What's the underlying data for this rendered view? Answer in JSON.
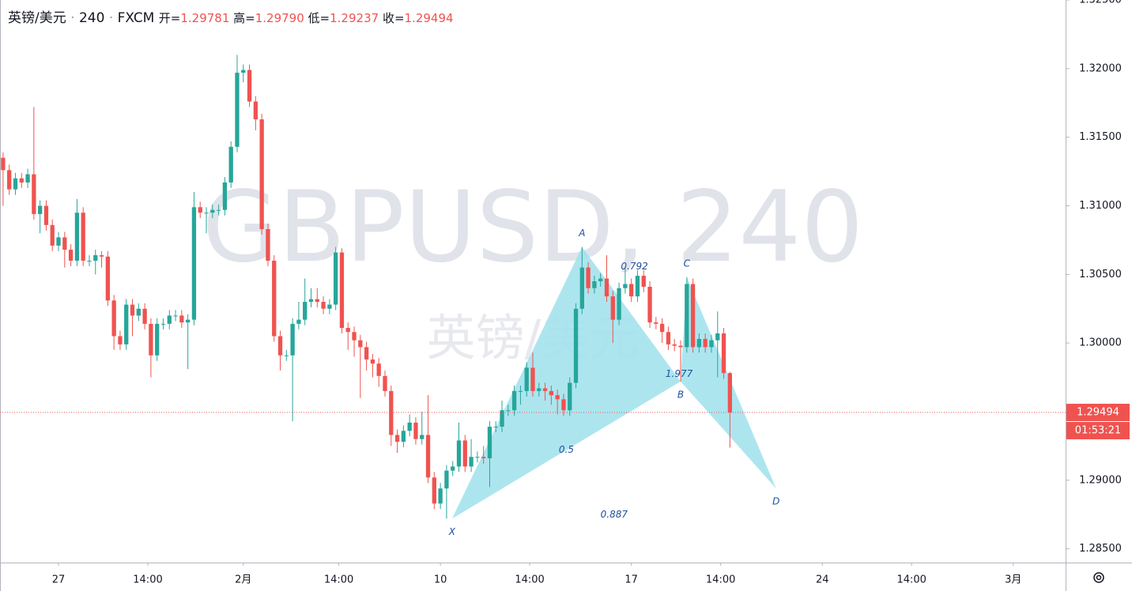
{
  "header": {
    "symbol": "英镑/美元",
    "interval": "240",
    "exchange": "FXCM",
    "ohlc": [
      {
        "label": "开=",
        "value": "1.29781"
      },
      {
        "label": "高=",
        "value": "1.29790"
      },
      {
        "label": "低=",
        "value": "1.29237"
      },
      {
        "label": "收=",
        "value": "1.29494"
      }
    ]
  },
  "chart_data": {
    "type": "candlestick",
    "watermark": "GBPUSD, 240",
    "watermark_sub": "英镑/美元",
    "up_color": "#26a69a",
    "down_color": "#ef5350",
    "open": [
      1.3135,
      1.3126,
      1.3112,
      1.312,
      1.3117,
      1.3123,
      1.3094,
      1.31,
      1.3086,
      1.3071,
      1.3077,
      1.3068,
      1.306,
      1.3095,
      1.306,
      1.306,
      1.3064,
      1.3063,
      1.3031,
      1.3005,
      1.2999,
      1.3028,
      1.302,
      1.3025,
      1.3014,
      1.2991,
      1.3014,
      1.3014,
      1.302,
      1.302,
      1.3015,
      1.3017,
      1.3099,
      1.3095,
      1.3095,
      1.3097,
      1.3097,
      1.3117,
      1.3143,
      1.3197,
      1.3199,
      1.3176,
      1.3163,
      1.3083,
      1.306,
      1.3005,
      1.2991,
      1.2991,
      1.3014,
      1.3017,
      1.303,
      1.3032,
      1.303,
      1.3025,
      1.3028,
      1.3066,
      1.3011,
      1.3008,
      1.3002,
      1.2997,
      1.2988,
      1.2985,
      1.2976,
      1.2965,
      1.2933,
      1.2928,
      1.2936,
      1.2942,
      1.293,
      1.2933,
      1.2902,
      1.2883,
      1.2894,
      1.2907,
      1.291,
      1.2929,
      1.291,
      1.2917,
      1.2917,
      1.2916,
      1.2939,
      1.2939,
      1.2951,
      1.2951,
      1.2965,
      1.2965,
      1.2982,
      1.2965,
      1.2967,
      1.2965,
      1.2962,
      1.2959,
      1.2951,
      1.2971,
      1.3025,
      1.3055,
      1.304,
      1.3045,
      1.3047,
      1.3034,
      1.3017,
      1.304,
      1.3043,
      1.3034,
      1.3049,
      1.3041,
      1.3015,
      1.3014,
      1.3008,
      1.2999,
      1.2998,
      1.2997,
      1.3043,
      1.2997,
      1.3003,
      1.2997,
      1.3002,
      1.3007,
      1.29781
    ],
    "high": [
      1.3139,
      1.313,
      1.3124,
      1.3124,
      1.3127,
      1.3172,
      1.3104,
      1.3104,
      1.309,
      1.3081,
      1.3081,
      1.3072,
      1.3105,
      1.3099,
      1.3064,
      1.3068,
      1.3067,
      1.3067,
      1.3035,
      1.3009,
      1.3032,
      1.3032,
      1.3029,
      1.3029,
      1.3018,
      1.3018,
      1.3018,
      1.3024,
      1.3024,
      1.3024,
      1.3021,
      1.311,
      1.3103,
      1.3099,
      1.3101,
      1.3101,
      1.3121,
      1.3147,
      1.321,
      1.3203,
      1.3203,
      1.318,
      1.3167,
      1.3087,
      1.3064,
      1.3009,
      1.2995,
      1.3018,
      1.303,
      1.3047,
      1.304,
      1.304,
      1.3034,
      1.3032,
      1.307,
      1.3069,
      1.3015,
      1.3012,
      1.3006,
      1.3001,
      1.2992,
      1.2989,
      1.298,
      1.2969,
      1.2937,
      1.294,
      1.2948,
      1.2946,
      1.295,
      1.2962,
      1.2906,
      1.2898,
      1.2911,
      1.2914,
      1.2942,
      1.2933,
      1.293,
      1.2921,
      1.2925,
      1.2943,
      1.2943,
      1.2958,
      1.2955,
      1.2969,
      1.2969,
      1.2986,
      1.2993,
      1.2971,
      1.2971,
      1.2969,
      1.2966,
      1.2963,
      1.2975,
      1.3029,
      1.307,
      1.3059,
      1.3049,
      1.3051,
      1.3064,
      1.3038,
      1.3044,
      1.3055,
      1.3047,
      1.3053,
      1.3053,
      1.3045,
      1.3019,
      1.3018,
      1.3012,
      1.3003,
      1.3002,
      1.3048,
      1.3047,
      1.3007,
      1.3007,
      1.3006,
      1.3023,
      1.3011,
      1.2979
    ],
    "low": [
      1.31,
      1.3108,
      1.3108,
      1.3113,
      1.3113,
      1.309,
      1.308,
      1.3082,
      1.3067,
      1.3067,
      1.3055,
      1.3056,
      1.3056,
      1.3056,
      1.3056,
      1.305,
      1.3055,
      1.3027,
      1.2995,
      1.2995,
      1.2995,
      1.3005,
      1.3016,
      1.301,
      1.2975,
      1.2987,
      1.301,
      1.301,
      1.3016,
      1.3011,
      1.2981,
      1.3013,
      1.3091,
      1.308,
      1.3091,
      1.3093,
      1.3093,
      1.3113,
      1.3139,
      1.319,
      1.3172,
      1.3155,
      1.3079,
      1.3056,
      1.3001,
      1.298,
      1.2987,
      1.2943,
      1.301,
      1.3013,
      1.3026,
      1.3026,
      1.3021,
      1.3021,
      1.3024,
      1.3007,
      1.2995,
      1.299,
      1.296,
      1.298,
      1.2975,
      1.2968,
      1.2961,
      1.2925,
      1.292,
      1.2924,
      1.2932,
      1.2926,
      1.2926,
      1.2898,
      1.2879,
      1.2879,
      1.2872,
      1.2903,
      1.2906,
      1.2906,
      1.2906,
      1.2913,
      1.2912,
      1.2895,
      1.2935,
      1.2935,
      1.2947,
      1.2947,
      1.2955,
      1.2961,
      1.2961,
      1.2961,
      1.2958,
      1.2955,
      1.2948,
      1.2947,
      1.2947,
      1.2967,
      1.3021,
      1.3036,
      1.3036,
      1.3041,
      1.303,
      1.3,
      1.3013,
      1.3036,
      1.303,
      1.303,
      1.3037,
      1.3011,
      1.301,
      1.3,
      1.2995,
      1.2994,
      1.2972,
      1.2993,
      1.2993,
      1.2993,
      1.2993,
      1.2993,
      1.2975,
      1.2974,
      1.29237
    ],
    "close": [
      1.3126,
      1.3112,
      1.312,
      1.3117,
      1.3123,
      1.3094,
      1.31,
      1.3086,
      1.3071,
      1.3077,
      1.3068,
      1.306,
      1.3095,
      1.306,
      1.306,
      1.3064,
      1.3063,
      1.3031,
      1.3005,
      1.2999,
      1.3028,
      1.302,
      1.3025,
      1.3014,
      1.2991,
      1.3014,
      1.3014,
      1.302,
      1.302,
      1.3015,
      1.3017,
      1.3099,
      1.3095,
      1.3095,
      1.3097,
      1.3097,
      1.3117,
      1.3143,
      1.3197,
      1.3199,
      1.3176,
      1.3163,
      1.3083,
      1.306,
      1.3005,
      1.2991,
      1.2991,
      1.3014,
      1.3017,
      1.303,
      1.3032,
      1.303,
      1.3025,
      1.3028,
      1.3066,
      1.3011,
      1.3008,
      1.3002,
      1.2997,
      1.2988,
      1.2985,
      1.2976,
      1.2965,
      1.2933,
      1.2928,
      1.2936,
      1.2942,
      1.293,
      1.2933,
      1.2902,
      1.2883,
      1.2894,
      1.2907,
      1.291,
      1.2929,
      1.291,
      1.2917,
      1.2917,
      1.2916,
      1.2939,
      1.2939,
      1.2951,
      1.2951,
      1.2965,
      1.2965,
      1.2982,
      1.2965,
      1.2967,
      1.2965,
      1.2962,
      1.2959,
      1.2951,
      1.2971,
      1.3025,
      1.3055,
      1.304,
      1.3045,
      1.3047,
      1.3034,
      1.3017,
      1.304,
      1.3043,
      1.3034,
      1.3049,
      1.3041,
      1.3015,
      1.3014,
      1.3008,
      1.2999,
      1.2998,
      1.2997,
      1.3043,
      1.2997,
      1.3003,
      1.2997,
      1.3002,
      1.3007,
      1.29781,
      1.29494
    ],
    "ylim": [
      1.284,
      1.325
    ],
    "yticks": [
      {
        "value": 1.285,
        "label": "1.28500"
      },
      {
        "value": 1.29,
        "label": "1.29000"
      },
      {
        "value": 1.295,
        "label": "1.29500"
      },
      {
        "value": 1.3,
        "label": "1.30000"
      },
      {
        "value": 1.305,
        "label": "1.30500"
      },
      {
        "value": 1.31,
        "label": "1.31000"
      },
      {
        "value": 1.315,
        "label": "1.31500"
      },
      {
        "value": 1.32,
        "label": "1.32000"
      },
      {
        "value": 1.325,
        "label": "1.32500"
      }
    ],
    "xlim": [
      -0.5,
      172.5
    ],
    "xticks": [
      {
        "value": 9,
        "label": "27"
      },
      {
        "value": 23.5,
        "label": "14:00"
      },
      {
        "value": 39,
        "label": "2月"
      },
      {
        "value": 54.5,
        "label": "14:00"
      },
      {
        "value": 71,
        "label": "10"
      },
      {
        "value": 85.5,
        "label": "14:00"
      },
      {
        "value": 102,
        "label": "17"
      },
      {
        "value": 116.5,
        "label": "14:00"
      },
      {
        "value": 133,
        "label": "24"
      },
      {
        "value": 147.5,
        "label": "14:00"
      },
      {
        "value": 164,
        "label": "3月"
      }
    ],
    "last_price": {
      "value": 1.29494,
      "label": "1.29494",
      "countdown": "01:53:21"
    },
    "pattern": {
      "color": "#9fe0ec",
      "points": [
        {
          "name": "X",
          "x": 72.9,
          "y": 1.2872
        },
        {
          "name": "A",
          "x": 94,
          "y": 1.307
        },
        {
          "name": "B",
          "x": 110,
          "y": 1.2972
        },
        {
          "name": "C",
          "x": 111,
          "y": 1.3048
        },
        {
          "name": "D",
          "x": 125.5,
          "y": 1.2894
        }
      ],
      "ratios": [
        "0.5",
        "0.792",
        "0.887",
        "1.977"
      ]
    }
  }
}
